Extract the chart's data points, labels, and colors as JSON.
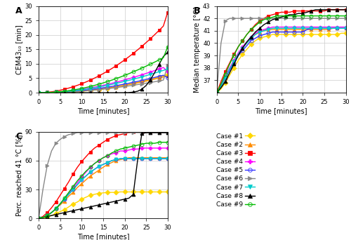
{
  "cases": [
    "Case #1",
    "Case #2",
    "Case #3",
    "Case #4",
    "Case #5",
    "Case #6",
    "Case #7",
    "Case #8",
    "Case #9"
  ],
  "colors": [
    "#FFD700",
    "#FF8C00",
    "#FF0000",
    "#FF00FF",
    "#3333FF",
    "#888888",
    "#00CCCC",
    "#000000",
    "#00BB00"
  ],
  "markers": [
    "D",
    "^",
    "s",
    "P",
    "o",
    ">",
    "v",
    "^",
    "o"
  ],
  "markerfacecolors": [
    "#FFD700",
    "#FF8C00",
    "#FF0000",
    "#FF00FF",
    "none",
    "#888888",
    "#00CCCC",
    "#000000",
    "none"
  ],
  "time": [
    0,
    1,
    2,
    3,
    4,
    5,
    6,
    7,
    8,
    9,
    10,
    11,
    12,
    13,
    14,
    15,
    16,
    17,
    18,
    19,
    20,
    21,
    22,
    23,
    24,
    25,
    26,
    27,
    28,
    29,
    30
  ],
  "panelA_data": [
    [
      0,
      0.01,
      0.02,
      0.04,
      0.07,
      0.11,
      0.16,
      0.22,
      0.3,
      0.39,
      0.5,
      0.62,
      0.76,
      0.92,
      1.1,
      1.3,
      1.52,
      1.76,
      2.02,
      2.3,
      2.59,
      2.9,
      3.22,
      3.56,
      3.91,
      4.27,
      4.64,
      5.03,
      5.42,
      5.83,
      6.25
    ],
    [
      0,
      0.01,
      0.03,
      0.06,
      0.1,
      0.16,
      0.22,
      0.3,
      0.39,
      0.5,
      0.62,
      0.75,
      0.9,
      1.06,
      1.23,
      1.42,
      1.62,
      1.83,
      2.06,
      2.3,
      2.55,
      2.82,
      3.1,
      3.4,
      3.71,
      4.03,
      4.37,
      4.72,
      5.08,
      5.45,
      5.83
    ],
    [
      0,
      0.05,
      0.15,
      0.3,
      0.55,
      0.85,
      1.2,
      1.6,
      2.05,
      2.55,
      3.1,
      3.7,
      4.35,
      5.05,
      5.8,
      6.6,
      7.45,
      8.35,
      9.3,
      10.3,
      11.35,
      12.45,
      13.6,
      14.8,
      16.05,
      17.35,
      18.7,
      20.1,
      21.55,
      23.05,
      27.8
    ],
    [
      0,
      0.02,
      0.05,
      0.1,
      0.18,
      0.28,
      0.4,
      0.55,
      0.72,
      0.92,
      1.14,
      1.38,
      1.65,
      1.93,
      2.23,
      2.55,
      2.89,
      3.25,
      3.62,
      4.01,
      4.42,
      4.84,
      5.28,
      5.73,
      6.2,
      6.68,
      7.17,
      7.68,
      8.2,
      8.73,
      7.3
    ],
    [
      0,
      0.01,
      0.03,
      0.07,
      0.12,
      0.19,
      0.27,
      0.37,
      0.48,
      0.61,
      0.75,
      0.91,
      1.09,
      1.28,
      1.48,
      1.7,
      1.93,
      2.18,
      2.44,
      2.71,
      2.99,
      3.28,
      3.59,
      3.91,
      4.24,
      4.58,
      4.93,
      5.29,
      5.66,
      6.04,
      5.2
    ],
    [
      0,
      0.01,
      0.03,
      0.06,
      0.1,
      0.15,
      0.21,
      0.28,
      0.36,
      0.45,
      0.56,
      0.67,
      0.8,
      0.93,
      1.08,
      1.23,
      1.4,
      1.57,
      1.76,
      1.95,
      2.15,
      2.36,
      2.58,
      2.81,
      3.04,
      3.29,
      3.54,
      3.8,
      4.07,
      4.35,
      9.5
    ],
    [
      0,
      0.02,
      0.05,
      0.1,
      0.17,
      0.26,
      0.37,
      0.5,
      0.65,
      0.82,
      1.01,
      1.22,
      1.45,
      1.7,
      1.97,
      2.25,
      2.55,
      2.86,
      3.19,
      3.54,
      3.9,
      4.27,
      4.66,
      5.06,
      5.47,
      5.9,
      6.34,
      6.79,
      7.25,
      7.72,
      8.2
    ],
    [
      0,
      0.0,
      0.0,
      0.0,
      0.0,
      0.0,
      0.0,
      0.0,
      0.0,
      0.0,
      0.0,
      0.0,
      0.0,
      0.0,
      0.0,
      0.0,
      0.0,
      0.0,
      0.0,
      0.0,
      0.0,
      0.05,
      0.2,
      0.5,
      1.2,
      2.5,
      4.5,
      7.0,
      9.8,
      12.5,
      14.0
    ],
    [
      0,
      0.02,
      0.06,
      0.13,
      0.23,
      0.36,
      0.52,
      0.71,
      0.93,
      1.19,
      1.48,
      1.8,
      2.15,
      2.53,
      2.94,
      3.38,
      3.85,
      4.35,
      4.87,
      5.42,
      5.99,
      6.59,
      7.21,
      7.85,
      8.51,
      9.19,
      9.89,
      10.61,
      11.34,
      12.09,
      15.85
    ]
  ],
  "panelB_data": [
    [
      36.0,
      36.3,
      36.8,
      37.4,
      38.0,
      38.6,
      39.1,
      39.5,
      39.9,
      40.2,
      40.4,
      40.5,
      40.6,
      40.7,
      40.7,
      40.7,
      40.7,
      40.7,
      40.7,
      40.7,
      40.7,
      40.7,
      40.7,
      40.7,
      40.7,
      40.7,
      40.7,
      40.7,
      40.7,
      40.8,
      40.8
    ],
    [
      36.0,
      36.5,
      37.2,
      37.9,
      38.5,
      39.1,
      39.6,
      40.0,
      40.4,
      40.7,
      40.9,
      41.0,
      41.1,
      41.1,
      41.1,
      41.1,
      41.1,
      41.1,
      41.1,
      41.1,
      41.1,
      41.1,
      41.1,
      41.1,
      41.1,
      41.1,
      41.1,
      41.2,
      41.2,
      41.2,
      41.2
    ],
    [
      36.0,
      36.9,
      37.7,
      38.4,
      39.1,
      39.7,
      40.2,
      40.7,
      41.1,
      41.5,
      41.8,
      42.0,
      42.2,
      42.3,
      42.4,
      42.5,
      42.5,
      42.5,
      42.6,
      42.6,
      42.6,
      42.6,
      42.6,
      42.6,
      42.6,
      42.6,
      42.7,
      42.7,
      42.7,
      42.7,
      42.7
    ],
    [
      36.0,
      36.6,
      37.3,
      38.0,
      38.6,
      39.2,
      39.7,
      40.1,
      40.5,
      40.8,
      41.0,
      41.1,
      41.2,
      41.3,
      41.3,
      41.3,
      41.3,
      41.3,
      41.3,
      41.3,
      41.3,
      41.3,
      41.3,
      41.3,
      41.3,
      41.3,
      41.3,
      41.3,
      41.3,
      41.3,
      41.3
    ],
    [
      36.0,
      36.5,
      37.2,
      37.8,
      38.4,
      39.0,
      39.4,
      39.8,
      40.2,
      40.4,
      40.6,
      40.7,
      40.8,
      40.9,
      40.9,
      40.9,
      40.9,
      40.9,
      40.9,
      40.9,
      40.9,
      41.1,
      41.2,
      41.2,
      41.2,
      41.2,
      41.2,
      41.2,
      41.2,
      41.2,
      41.2
    ],
    [
      36.0,
      40.0,
      41.8,
      42.0,
      42.0,
      42.0,
      42.0,
      42.0,
      42.0,
      42.0,
      42.0,
      42.0,
      42.0,
      42.0,
      42.0,
      42.0,
      42.0,
      42.0,
      42.0,
      42.0,
      42.0,
      42.0,
      42.0,
      42.0,
      42.0,
      42.0,
      42.0,
      42.0,
      42.0,
      42.0,
      42.0
    ],
    [
      36.0,
      36.5,
      37.2,
      37.9,
      38.5,
      39.1,
      39.6,
      40.0,
      40.4,
      40.7,
      40.9,
      41.0,
      41.1,
      41.2,
      41.2,
      41.2,
      41.2,
      41.2,
      41.2,
      41.2,
      41.2,
      41.2,
      41.2,
      41.2,
      41.2,
      41.2,
      41.2,
      41.2,
      41.2,
      41.2,
      41.2
    ],
    [
      36.0,
      36.4,
      36.9,
      37.6,
      38.3,
      39.0,
      39.6,
      40.1,
      40.5,
      40.9,
      41.2,
      41.5,
      41.7,
      41.9,
      42.0,
      42.1,
      42.2,
      42.3,
      42.3,
      42.4,
      42.4,
      42.5,
      42.6,
      42.7,
      42.7,
      42.7,
      42.7,
      42.7,
      42.7,
      42.7,
      42.7
    ],
    [
      36.0,
      36.7,
      37.5,
      38.3,
      39.0,
      39.7,
      40.2,
      40.7,
      41.1,
      41.4,
      41.7,
      41.9,
      42.0,
      42.1,
      42.2,
      42.2,
      42.2,
      42.2,
      42.2,
      42.2,
      42.2,
      42.2,
      42.2,
      42.2,
      42.2,
      42.2,
      42.2,
      42.2,
      42.2,
      42.2,
      42.2
    ]
  ],
  "panelC_data": [
    [
      0,
      0.5,
      1.5,
      3,
      5,
      7,
      9,
      12,
      15,
      17,
      20,
      22,
      24,
      25,
      26,
      26.5,
      27,
      27,
      27,
      27.5,
      27.5,
      27.5,
      27.5,
      27.5,
      27.5,
      27.5,
      27.5,
      27.5,
      27.5,
      27.5,
      27.5
    ],
    [
      0,
      1,
      3,
      6,
      10,
      14,
      18,
      23,
      27,
      32,
      36,
      40,
      44,
      47,
      50,
      53,
      56,
      58,
      60,
      61,
      62,
      63,
      63,
      63,
      63,
      63,
      63,
      63,
      63,
      63,
      63
    ],
    [
      0,
      2,
      6,
      11,
      17,
      24,
      31,
      38,
      46,
      53,
      59,
      64,
      69,
      73,
      76,
      79,
      82,
      84,
      86,
      87,
      88,
      89,
      90,
      90,
      90,
      90,
      90,
      90,
      90,
      90,
      90
    ],
    [
      0,
      1,
      3,
      6,
      10,
      15,
      20,
      26,
      32,
      37,
      43,
      48,
      53,
      57,
      60,
      63,
      65,
      67,
      68,
      70,
      70,
      71,
      72,
      72,
      73,
      73,
      73,
      73,
      73,
      73,
      73
    ],
    [
      0,
      1,
      3,
      6,
      10,
      15,
      20,
      25,
      30,
      35,
      40,
      44,
      48,
      51,
      54,
      56,
      58,
      60,
      61,
      62,
      62,
      62,
      62,
      62,
      62,
      62,
      62,
      62,
      62,
      62,
      62
    ],
    [
      0,
      30,
      55,
      70,
      78,
      82,
      85,
      87,
      88,
      89,
      89,
      89,
      89,
      89,
      89,
      89,
      89,
      89,
      89,
      89,
      89,
      89,
      89,
      89,
      89,
      89,
      89,
      89,
      89,
      89,
      89
    ],
    [
      0,
      1,
      3,
      6,
      10,
      15,
      20,
      25,
      30,
      35,
      40,
      44,
      48,
      51,
      54,
      56,
      58,
      60,
      61,
      62,
      62,
      62,
      62,
      62,
      62,
      62,
      62,
      62,
      62,
      62,
      62
    ],
    [
      0,
      1,
      2,
      3,
      4,
      5,
      6,
      7,
      8,
      9,
      10,
      11,
      12,
      13,
      14,
      15,
      16,
      17,
      18,
      19,
      20,
      21,
      25,
      60,
      88,
      89,
      89,
      89,
      89,
      89,
      89
    ],
    [
      0,
      1,
      3,
      6,
      10,
      15,
      21,
      27,
      33,
      39,
      44,
      49,
      53,
      57,
      60,
      63,
      65,
      68,
      70,
      72,
      73,
      74,
      75,
      76,
      77,
      78,
      78,
      78,
      79,
      79,
      79
    ]
  ],
  "panelA_ylim": [
    0,
    30
  ],
  "panelA_yticks": [
    0,
    5,
    10,
    15,
    20,
    25,
    30
  ],
  "panelB_ylim": [
    36,
    43
  ],
  "panelB_yticks": [
    37,
    38,
    39,
    40,
    41,
    42,
    43
  ],
  "panelC_ylim": [
    0,
    90
  ],
  "panelC_yticks": [
    0,
    30,
    60,
    90
  ],
  "xlim": [
    0,
    30
  ],
  "xticks": [
    0,
    5,
    10,
    15,
    20,
    25,
    30
  ],
  "xlabel": "Time [minutes]",
  "panelA_ylabel": "CEM43₁₀ [min]",
  "panelB_ylabel": "Median temperature [°C]",
  "panelC_ylabel": "Perc. reached 41 °C [%]",
  "panel_labels": [
    "A",
    "B",
    "C"
  ],
  "markersize": 3.5,
  "markevery": 2,
  "linewidth": 1.0
}
